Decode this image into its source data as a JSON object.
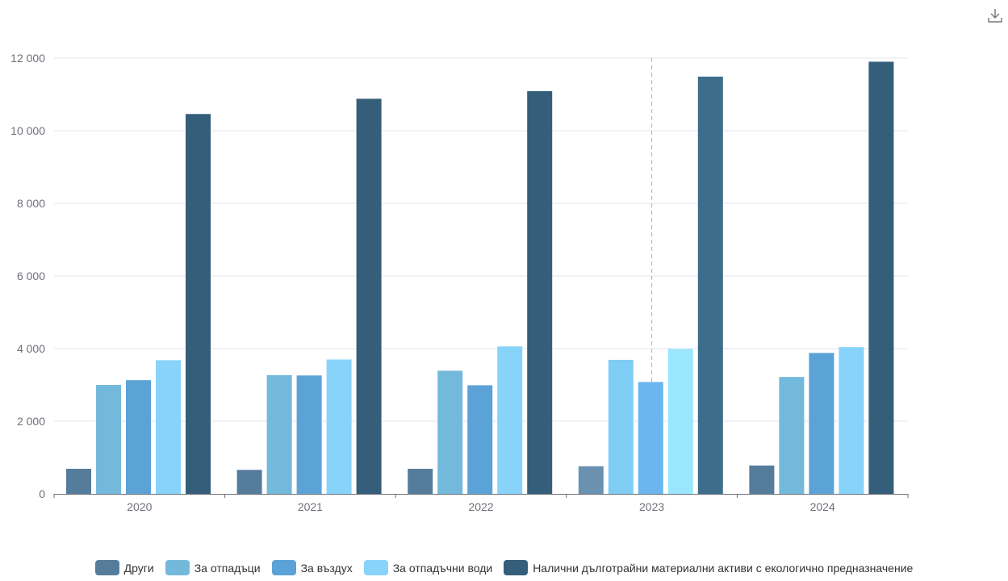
{
  "toolbar": {
    "download_icon": "download-icon"
  },
  "chart_data": {
    "type": "bar",
    "categories": [
      "2020",
      "2021",
      "2022",
      "2023",
      "2024"
    ],
    "ylim": [
      0,
      12000
    ],
    "yticks": [
      0,
      2000,
      4000,
      6000,
      8000,
      10000,
      12000
    ],
    "ytick_labels": [
      "0",
      "2 000",
      "4 000",
      "6 000",
      "8 000",
      "10 000",
      "12 000"
    ],
    "grid": true,
    "legend_position": "bottom",
    "highlighted_category": "2023",
    "series": [
      {
        "name": "Други",
        "color": "#567c9c",
        "values": [
          690,
          660,
          690,
          760,
          780
        ]
      },
      {
        "name": "За отпадъци",
        "color": "#73b9dc",
        "values": [
          3000,
          3270,
          3390,
          3690,
          3220
        ]
      },
      {
        "name": "За въздух",
        "color": "#5ba3d6",
        "values": [
          3130,
          3260,
          2990,
          3080,
          3880
        ]
      },
      {
        "name": "За отпадъчни води",
        "color": "#87d3fa",
        "values": [
          3680,
          3700,
          4060,
          3990,
          4040
        ]
      },
      {
        "name": "Налични дълготрайни материални активи с екологично предназначение",
        "color": "#345e79",
        "values": [
          10460,
          10880,
          11090,
          11490,
          11900
        ]
      }
    ],
    "highlight_colors": [
      "#6a91b0",
      "#7fcdf4",
      "#6cb6ef",
      "#9ae6ff",
      "#3e6d8c"
    ]
  }
}
